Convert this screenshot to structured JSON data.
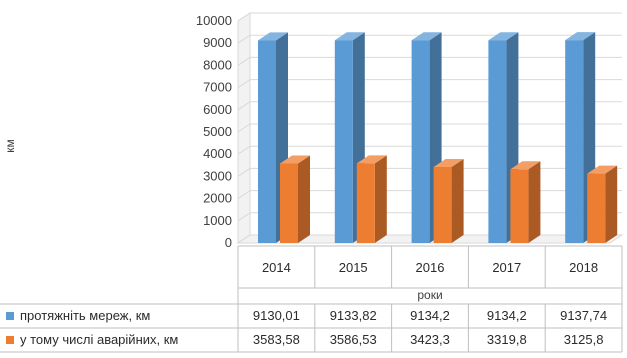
{
  "chart_data": {
    "type": "bar",
    "title": "",
    "xlabel": "роки",
    "ylabel": "км",
    "ylim": [
      0,
      10000
    ],
    "yticks": [
      0,
      1000,
      2000,
      3000,
      4000,
      5000,
      6000,
      7000,
      8000,
      9000,
      10000
    ],
    "categories": [
      "2014",
      "2015",
      "2016",
      "2017",
      "2018"
    ],
    "grid": true,
    "legend": "table-below",
    "series": [
      {
        "name": "протяжніть мереж, км",
        "color": "#5B9BD5",
        "values": [
          9130.01,
          9133.82,
          9134.2,
          9134.2,
          9137.74
        ],
        "labels": [
          "9130,01",
          "9133,82",
          "9134,2",
          "9134,2",
          "9137,74"
        ]
      },
      {
        "name": "у тому числі аварійних, км",
        "color": "#ED7D31",
        "values": [
          3583.58,
          3586.53,
          3423.3,
          3319.8,
          3125.8
        ],
        "labels": [
          "3583,58",
          "3586,53",
          "3423,3",
          "3319,8",
          "3125,8"
        ]
      }
    ]
  }
}
